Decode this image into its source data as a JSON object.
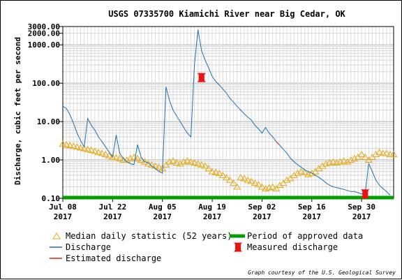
{
  "chart_data": {
    "type": "line",
    "title": "USGS 07335700 Kiamichi River near Big Cedar, OK",
    "ylabel": "Discharge, cubic feet per second",
    "xlabel": "",
    "y_scale": "log",
    "ylim": [
      0.1,
      3000
    ],
    "xlim": [
      "2017-07-08",
      "2017-10-09"
    ],
    "grid": true,
    "legend_placement": "bottom",
    "y_ticks": [
      "0.10",
      "1.00",
      "10.00",
      "100.00",
      "1000.00",
      "2000.00",
      "3000.00"
    ],
    "x_ticks": [
      {
        "date": "2017-07-08",
        "line1": "Jul 08",
        "line2": "2017"
      },
      {
        "date": "2017-07-22",
        "line1": "Jul 22",
        "line2": "2017"
      },
      {
        "date": "2017-08-05",
        "line1": "Aug 05",
        "line2": "2017"
      },
      {
        "date": "2017-08-19",
        "line1": "Aug 19",
        "line2": "2017"
      },
      {
        "date": "2017-09-02",
        "line1": "Sep 02",
        "line2": "2017"
      },
      {
        "date": "2017-09-16",
        "line1": "Sep 16",
        "line2": "2017"
      },
      {
        "date": "2017-09-30",
        "line1": "Sep 30",
        "line2": "2017"
      }
    ],
    "series": [
      {
        "name": "Discharge",
        "color": "#1f6fb4",
        "points": [
          [
            "2017-07-08",
            25
          ],
          [
            "2017-07-09",
            22
          ],
          [
            "2017-07-10",
            15
          ],
          [
            "2017-07-11",
            9
          ],
          [
            "2017-07-12",
            5
          ],
          [
            "2017-07-13",
            3.2
          ],
          [
            "2017-07-14",
            2.2
          ],
          [
            "2017-07-15",
            12
          ],
          [
            "2017-07-16",
            8
          ],
          [
            "2017-07-17",
            6
          ],
          [
            "2017-07-18",
            4
          ],
          [
            "2017-07-19",
            3
          ],
          [
            "2017-07-20",
            2.2
          ],
          [
            "2017-07-21",
            1.6
          ],
          [
            "2017-07-22",
            1.2
          ],
          [
            "2017-07-23",
            4.5
          ],
          [
            "2017-07-24",
            1.5
          ],
          [
            "2017-07-25",
            1.1
          ],
          [
            "2017-07-26",
            0.9
          ],
          [
            "2017-07-27",
            0.8
          ],
          [
            "2017-07-28",
            0.75
          ],
          [
            "2017-07-29",
            2.5
          ],
          [
            "2017-07-30",
            1.2
          ],
          [
            "2017-07-31",
            0.9
          ],
          [
            "2017-08-01",
            0.85
          ],
          [
            "2017-08-02",
            0.7
          ],
          [
            "2017-08-03",
            0.6
          ],
          [
            "2017-08-04",
            0.5
          ],
          [
            "2017-08-05",
            0.45
          ],
          [
            "2017-08-06",
            80
          ],
          [
            "2017-08-07",
            35
          ],
          [
            "2017-08-08",
            20
          ],
          [
            "2017-08-09",
            14
          ],
          [
            "2017-08-10",
            10
          ],
          [
            "2017-08-11",
            7
          ],
          [
            "2017-08-12",
            5
          ],
          [
            "2017-08-13",
            4
          ],
          [
            "2017-08-14",
            300
          ],
          [
            "2017-08-15",
            2500
          ],
          [
            "2017-08-16",
            700
          ],
          [
            "2017-08-17",
            400
          ],
          [
            "2017-08-18",
            250
          ],
          [
            "2017-08-19",
            150
          ],
          [
            "2017-08-20",
            110
          ],
          [
            "2017-08-21",
            90
          ],
          [
            "2017-08-22",
            70
          ],
          [
            "2017-08-23",
            55
          ],
          [
            "2017-08-24",
            40
          ],
          [
            "2017-08-25",
            32
          ],
          [
            "2017-08-26",
            25
          ],
          [
            "2017-08-27",
            20
          ],
          [
            "2017-08-28",
            16
          ],
          [
            "2017-08-29",
            13
          ],
          [
            "2017-08-30",
            11
          ],
          [
            "2017-08-31",
            8
          ],
          [
            "2017-09-01",
            6.5
          ],
          [
            "2017-09-02",
            5
          ],
          [
            "2017-09-03",
            7
          ],
          [
            "2017-09-04",
            5
          ],
          [
            "2017-09-05",
            4
          ],
          [
            "2017-09-06",
            3
          ],
          [
            "2017-09-07",
            2.4
          ],
          [
            "2017-09-08",
            1.9
          ],
          [
            "2017-09-09",
            1.5
          ],
          [
            "2017-09-10",
            1.1
          ],
          [
            "2017-09-11",
            0.9
          ],
          [
            "2017-09-12",
            0.75
          ],
          [
            "2017-09-13",
            0.65
          ],
          [
            "2017-09-14",
            0.55
          ],
          [
            "2017-09-15",
            0.5
          ],
          [
            "2017-09-16",
            0.45
          ],
          [
            "2017-09-17",
            0.4
          ],
          [
            "2017-09-18",
            0.35
          ],
          [
            "2017-09-19",
            0.3
          ],
          [
            "2017-09-20",
            0.25
          ],
          [
            "2017-09-21",
            0.22
          ],
          [
            "2017-09-22",
            0.2
          ],
          [
            "2017-09-23",
            0.19
          ],
          [
            "2017-09-24",
            0.18
          ],
          [
            "2017-09-25",
            0.17
          ],
          [
            "2017-09-26",
            0.16
          ],
          [
            "2017-09-27",
            0.15
          ],
          [
            "2017-09-28",
            0.15
          ],
          [
            "2017-09-29",
            0.14
          ],
          [
            "2017-09-30",
            0.13
          ],
          [
            "2017-10-01",
            0.13
          ],
          [
            "2017-10-02",
            0.8
          ],
          [
            "2017-10-03",
            0.5
          ],
          [
            "2017-10-04",
            0.3
          ],
          [
            "2017-10-05",
            0.22
          ],
          [
            "2017-10-06",
            0.18
          ],
          [
            "2017-10-07",
            0.15
          ],
          [
            "2017-10-08",
            0.12
          ]
        ]
      },
      {
        "name": "Median daily statistic (52 years)",
        "color": "#e6a817",
        "marker": "triangle",
        "points": [
          [
            "2017-07-08",
            2.6
          ],
          [
            "2017-07-09",
            2.5
          ],
          [
            "2017-07-10",
            2.4
          ],
          [
            "2017-07-11",
            2.3
          ],
          [
            "2017-07-12",
            2.2
          ],
          [
            "2017-07-13",
            2.1
          ],
          [
            "2017-07-14",
            2.0
          ],
          [
            "2017-07-15",
            1.9
          ],
          [
            "2017-07-16",
            1.8
          ],
          [
            "2017-07-17",
            1.7
          ],
          [
            "2017-07-18",
            1.6
          ],
          [
            "2017-07-19",
            1.5
          ],
          [
            "2017-07-20",
            1.4
          ],
          [
            "2017-07-21",
            1.3
          ],
          [
            "2017-07-22",
            1.2
          ],
          [
            "2017-07-23",
            1.15
          ],
          [
            "2017-07-24",
            1.1
          ],
          [
            "2017-07-25",
            1.0
          ],
          [
            "2017-07-26",
            1.0
          ],
          [
            "2017-07-27",
            1.1
          ],
          [
            "2017-07-28",
            1.2
          ],
          [
            "2017-07-29",
            1.1
          ],
          [
            "2017-07-30",
            1.0
          ],
          [
            "2017-07-31",
            0.9
          ],
          [
            "2017-08-01",
            0.8
          ],
          [
            "2017-08-02",
            0.75
          ],
          [
            "2017-08-03",
            0.7
          ],
          [
            "2017-08-04",
            0.65
          ],
          [
            "2017-08-05",
            0.6
          ],
          [
            "2017-08-06",
            0.75
          ],
          [
            "2017-08-07",
            0.9
          ],
          [
            "2017-08-08",
            0.95
          ],
          [
            "2017-08-09",
            0.85
          ],
          [
            "2017-08-10",
            0.8
          ],
          [
            "2017-08-11",
            0.9
          ],
          [
            "2017-08-12",
            0.95
          ],
          [
            "2017-08-13",
            0.9
          ],
          [
            "2017-08-14",
            0.85
          ],
          [
            "2017-08-15",
            0.8
          ],
          [
            "2017-08-16",
            0.75
          ],
          [
            "2017-08-17",
            0.7
          ],
          [
            "2017-08-18",
            0.6
          ],
          [
            "2017-08-19",
            0.5
          ],
          [
            "2017-08-20",
            0.48
          ],
          [
            "2017-08-21",
            0.45
          ],
          [
            "2017-08-22",
            0.4
          ],
          [
            "2017-08-23",
            0.35
          ],
          [
            "2017-08-24",
            0.3
          ],
          [
            "2017-08-25",
            0.25
          ],
          [
            "2017-08-26",
            0.2
          ],
          [
            "2017-08-27",
            0.35
          ],
          [
            "2017-08-28",
            0.33
          ],
          [
            "2017-08-29",
            0.3
          ],
          [
            "2017-08-30",
            0.28
          ],
          [
            "2017-08-31",
            0.25
          ],
          [
            "2017-09-01",
            0.23
          ],
          [
            "2017-09-02",
            0.2
          ],
          [
            "2017-09-03",
            0.18
          ],
          [
            "2017-09-04",
            0.19
          ],
          [
            "2017-09-05",
            0.2
          ],
          [
            "2017-09-06",
            0.18
          ],
          [
            "2017-09-07",
            0.22
          ],
          [
            "2017-09-08",
            0.25
          ],
          [
            "2017-09-09",
            0.3
          ],
          [
            "2017-09-10",
            0.33
          ],
          [
            "2017-09-11",
            0.4
          ],
          [
            "2017-09-12",
            0.45
          ],
          [
            "2017-09-13",
            0.5
          ],
          [
            "2017-09-14",
            0.48
          ],
          [
            "2017-09-15",
            0.42
          ],
          [
            "2017-09-16",
            0.45
          ],
          [
            "2017-09-17",
            0.5
          ],
          [
            "2017-09-18",
            0.6
          ],
          [
            "2017-09-19",
            0.7
          ],
          [
            "2017-09-20",
            0.8
          ],
          [
            "2017-09-21",
            0.85
          ],
          [
            "2017-09-22",
            0.9
          ],
          [
            "2017-09-23",
            0.85
          ],
          [
            "2017-09-24",
            0.9
          ],
          [
            "2017-09-25",
            0.95
          ],
          [
            "2017-09-26",
            0.9
          ],
          [
            "2017-09-27",
            1.0
          ],
          [
            "2017-09-28",
            1.1
          ],
          [
            "2017-09-29",
            1.2
          ],
          [
            "2017-09-30",
            1.4
          ],
          [
            "2017-10-01",
            1.2
          ],
          [
            "2017-10-02",
            1.0
          ],
          [
            "2017-10-03",
            1.2
          ],
          [
            "2017-10-04",
            1.4
          ],
          [
            "2017-10-05",
            1.6
          ],
          [
            "2017-10-06",
            1.5
          ],
          [
            "2017-10-07",
            1.5
          ],
          [
            "2017-10-08",
            1.4
          ],
          [
            "2017-10-09",
            1.4
          ]
        ]
      },
      {
        "name": "Estimated discharge",
        "color": "#e8191f",
        "points": [
          [
            "2017-09-06",
            3.0
          ],
          [
            "2017-09-07",
            2.4
          ]
        ]
      },
      {
        "name": "Measured discharge",
        "color": "#ee1111",
        "marker": "bowtie",
        "points": [
          [
            "2017-08-16",
            140
          ],
          [
            "2017-10-01",
            0.13
          ]
        ]
      },
      {
        "name": "Period of approved data",
        "color": "#00a000",
        "range": [
          "2017-07-08",
          "2017-10-09"
        ]
      }
    ],
    "legend": [
      {
        "label": "Median daily statistic (52 years)",
        "kind": "triangle",
        "color": "#e6a817"
      },
      {
        "label": "Period of approved data",
        "kind": "thickline",
        "color": "#00a000"
      },
      {
        "label": "Discharge",
        "kind": "line",
        "color": "#1f6fb4"
      },
      {
        "label": "Measured discharge",
        "kind": "bowtie",
        "color": "#ee1111"
      },
      {
        "label": "Estimated discharge",
        "kind": "line",
        "color": "#e8191f"
      }
    ],
    "credit": "Graph courtesy of the U.S. Geological Survey"
  }
}
